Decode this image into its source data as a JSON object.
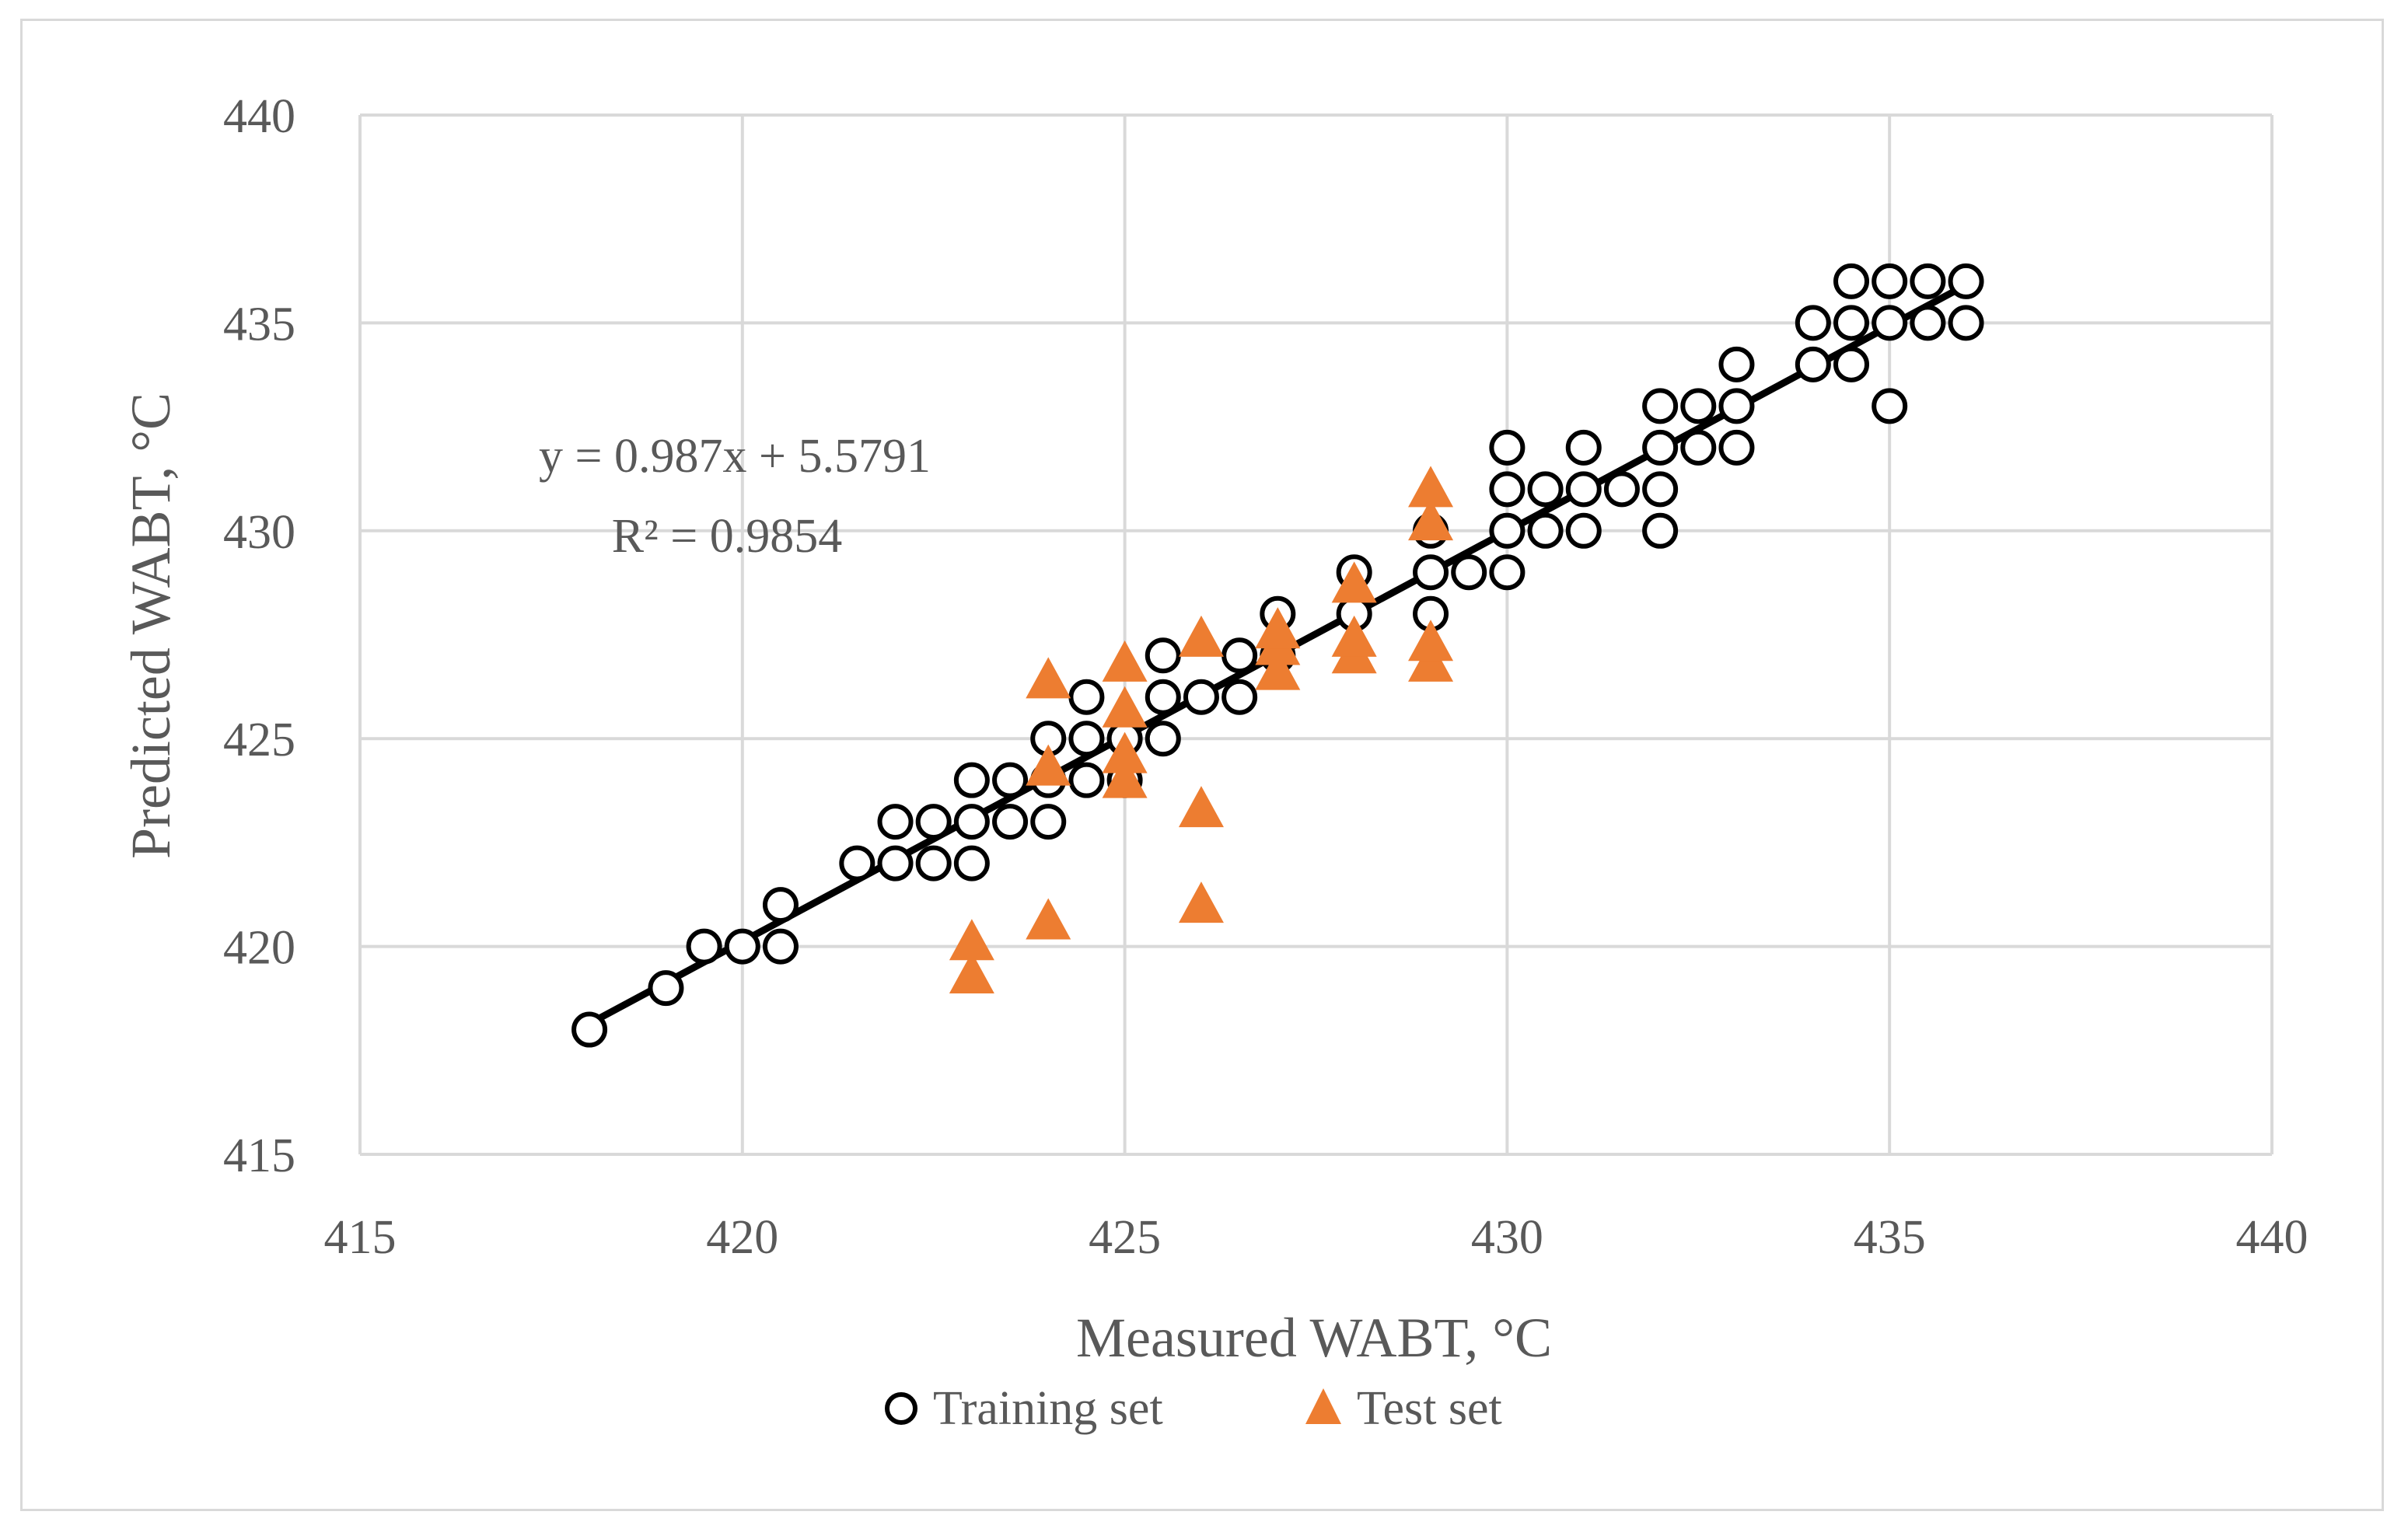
{
  "chart_data": {
    "type": "scatter",
    "xlabel": "Measured WABT, °C",
    "ylabel": "Predicted WABT, °C",
    "xlim": [
      415,
      440
    ],
    "ylim": [
      415,
      440
    ],
    "x_ticks": [
      415,
      420,
      425,
      430,
      435,
      440
    ],
    "y_ticks": [
      415,
      420,
      425,
      430,
      435,
      440
    ],
    "x_tick_labels": [
      "415",
      "420",
      "425",
      "430",
      "435",
      "440"
    ],
    "y_tick_labels": [
      "415",
      "420",
      "425",
      "430",
      "435",
      "440"
    ],
    "grid": true,
    "legend_position": "bottom",
    "series": [
      {
        "name": "Training set",
        "marker": "circle",
        "color": "#000000",
        "points": [
          [
            418,
            418
          ],
          [
            419,
            419
          ],
          [
            419.5,
            420
          ],
          [
            420,
            420
          ],
          [
            420.5,
            420
          ],
          [
            420.5,
            421
          ],
          [
            421.5,
            422
          ],
          [
            422,
            422
          ],
          [
            422,
            423
          ],
          [
            422.5,
            422
          ],
          [
            422.5,
            423
          ],
          [
            423,
            422
          ],
          [
            423,
            423
          ],
          [
            423,
            424
          ],
          [
            423.5,
            423
          ],
          [
            423.5,
            424
          ],
          [
            424,
            423
          ],
          [
            424,
            424
          ],
          [
            424,
            425
          ],
          [
            424.5,
            424
          ],
          [
            424.5,
            425
          ],
          [
            424.5,
            426
          ],
          [
            425,
            424
          ],
          [
            425,
            425
          ],
          [
            425.5,
            425
          ],
          [
            425.5,
            426
          ],
          [
            425.5,
            427
          ],
          [
            426,
            426
          ],
          [
            426.5,
            426
          ],
          [
            426.5,
            427
          ],
          [
            427,
            427
          ],
          [
            427,
            428
          ],
          [
            428,
            428
          ],
          [
            428,
            429
          ],
          [
            429,
            428
          ],
          [
            429,
            429
          ],
          [
            429,
            430
          ],
          [
            429.5,
            429
          ],
          [
            430,
            429
          ],
          [
            430,
            430
          ],
          [
            430,
            431
          ],
          [
            430,
            432
          ],
          [
            430.5,
            430
          ],
          [
            430.5,
            431
          ],
          [
            431,
            430
          ],
          [
            431,
            431
          ],
          [
            431,
            432
          ],
          [
            431.5,
            431
          ],
          [
            432,
            430
          ],
          [
            432,
            431
          ],
          [
            432,
            432
          ],
          [
            432,
            433
          ],
          [
            432.5,
            432
          ],
          [
            432.5,
            433
          ],
          [
            433,
            432
          ],
          [
            433,
            433
          ],
          [
            433,
            434
          ],
          [
            434,
            434
          ],
          [
            434,
            435
          ],
          [
            434.5,
            434
          ],
          [
            434.5,
            435
          ],
          [
            434.5,
            436
          ],
          [
            435,
            433
          ],
          [
            435,
            435
          ],
          [
            435,
            436
          ],
          [
            435.5,
            435
          ],
          [
            435.5,
            436
          ],
          [
            436,
            435
          ],
          [
            436,
            436
          ]
        ]
      },
      {
        "name": "Test set",
        "marker": "triangle",
        "color": "#ED7D31",
        "points": [
          [
            423,
            419.3
          ],
          [
            423,
            420.1
          ],
          [
            424,
            420.6
          ],
          [
            424,
            424.3
          ],
          [
            424,
            426.4
          ],
          [
            425,
            424
          ],
          [
            425,
            424.6
          ],
          [
            425,
            425.7
          ],
          [
            425,
            426.8
          ],
          [
            426,
            421
          ],
          [
            426,
            423.3
          ],
          [
            426,
            427.4
          ],
          [
            427,
            426.6
          ],
          [
            427,
            427.2
          ],
          [
            427,
            427.6
          ],
          [
            428,
            427
          ],
          [
            428,
            427.4
          ],
          [
            428,
            428.7
          ],
          [
            429,
            426.8
          ],
          [
            429,
            427.3
          ],
          [
            429,
            430.2
          ],
          [
            429,
            431
          ]
        ]
      }
    ],
    "trendline": {
      "slope": 0.987,
      "intercept": 5.5791,
      "x_range": [
        418,
        436
      ],
      "color": "#000000"
    },
    "annotations": {
      "equation": "y = 0.987x + 5.5791",
      "r_squared": "R² = 0.9854"
    }
  }
}
